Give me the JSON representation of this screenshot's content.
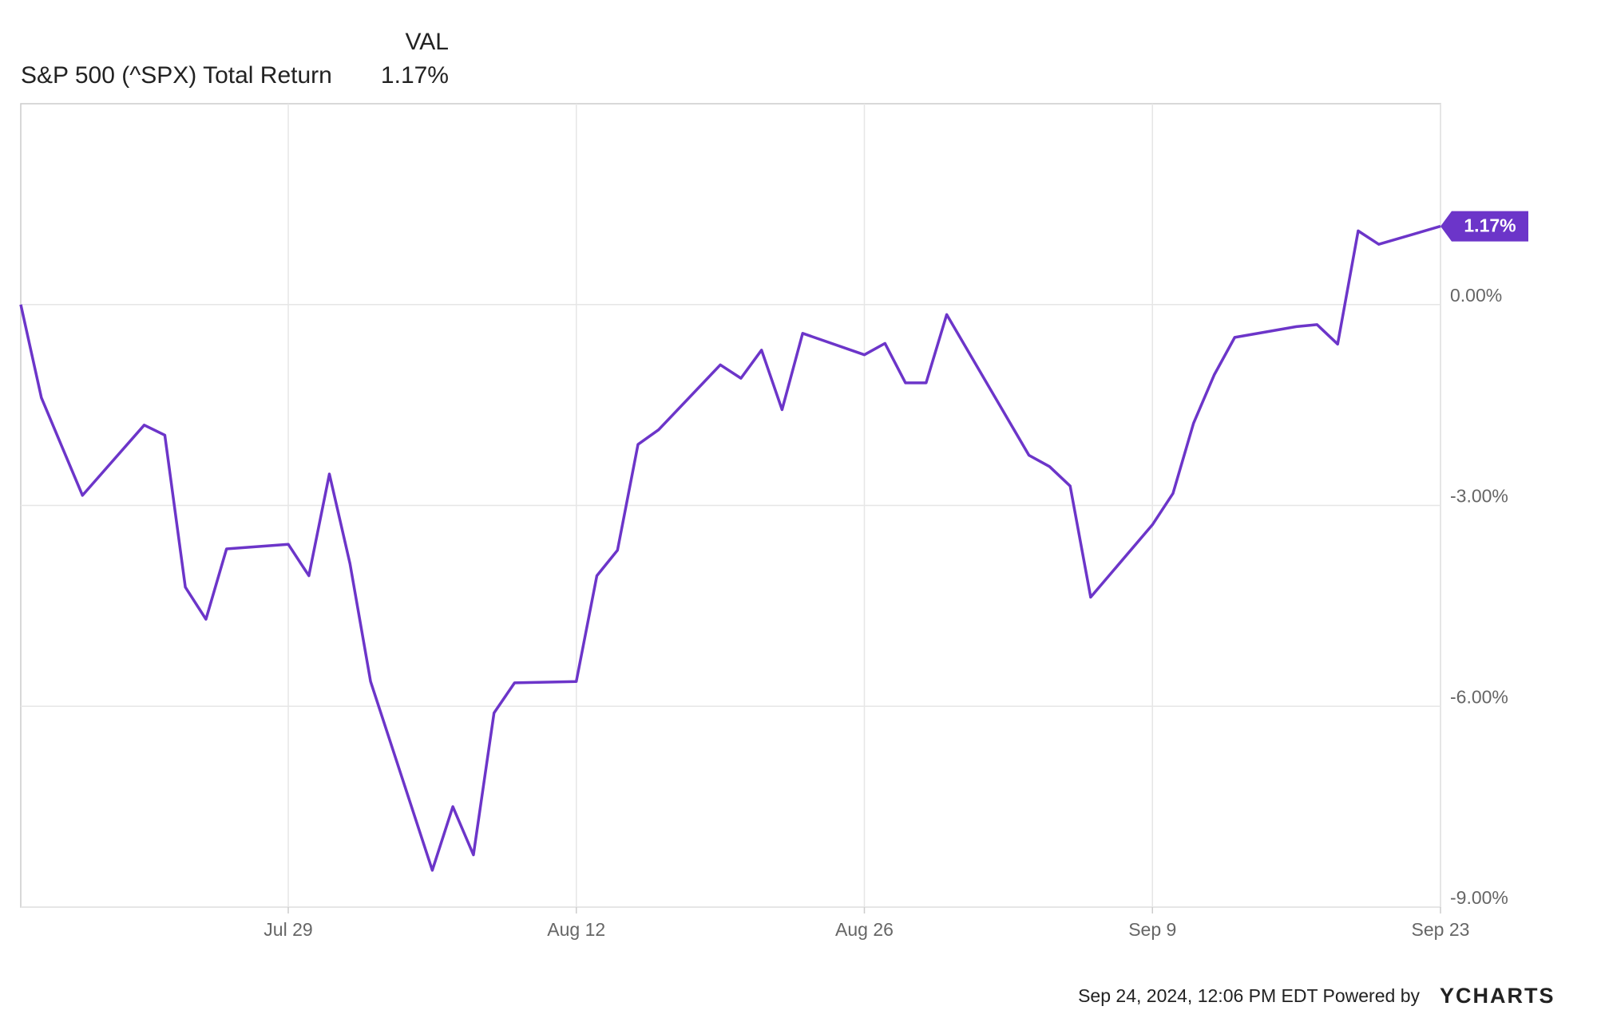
{
  "chart_data": {
    "type": "line",
    "legend": {
      "header": "VAL",
      "value": "1.17%"
    },
    "x": [
      "Jul 16",
      "Jul 17",
      "Jul 18",
      "Jul 19",
      "Jul 22",
      "Jul 23",
      "Jul 24",
      "Jul 25",
      "Jul 26",
      "Jul 29",
      "Jul 30",
      "Jul 31",
      "Aug 1",
      "Aug 2",
      "Aug 5",
      "Aug 6",
      "Aug 7",
      "Aug 8",
      "Aug 9",
      "Aug 12",
      "Aug 13",
      "Aug 14",
      "Aug 15",
      "Aug 16",
      "Aug 19",
      "Aug 20",
      "Aug 21",
      "Aug 22",
      "Aug 23",
      "Aug 26",
      "Aug 27",
      "Aug 28",
      "Aug 29",
      "Aug 30",
      "Sep 3",
      "Sep 4",
      "Sep 5",
      "Sep 6",
      "Sep 9",
      "Sep 10",
      "Sep 11",
      "Sep 12",
      "Sep 13",
      "Sep 16",
      "Sep 17",
      "Sep 18",
      "Sep 19",
      "Sep 20",
      "Sep 23"
    ],
    "series": [
      {
        "name": "S&P 500 (^SPX) Total Return",
        "color": "#6c35c9",
        "values": [
          0,
          -1.39,
          -2.12,
          -2.85,
          -1.8,
          -1.95,
          -4.22,
          -4.7,
          -3.65,
          -3.58,
          -4.05,
          -2.53,
          -3.87,
          -5.63,
          -8.45,
          -7.5,
          -8.22,
          -6.1,
          -5.65,
          -5.63,
          -4.05,
          -3.67,
          -2.09,
          -1.87,
          -0.9,
          -1.1,
          -0.68,
          -1.57,
          -0.43,
          -0.75,
          -0.58,
          -1.17,
          -1.17,
          -0.15,
          -2.25,
          -2.42,
          -2.71,
          -4.37,
          -3.29,
          -2.82,
          -1.77,
          -1.05,
          -0.49,
          -0.33,
          -0.3,
          -0.59,
          1.1,
          0.9,
          1.17
        ]
      }
    ],
    "xlim": [
      "Jul 16",
      "Sep 23"
    ],
    "xticks": [
      "Jul 29",
      "Aug 12",
      "Aug 26",
      "Sep 9",
      "Sep 23"
    ],
    "ylim": [
      -9,
      3
    ],
    "yticks": [
      {
        "value": 0,
        "label": "0.00%"
      },
      {
        "value": -3,
        "label": "-3.00%"
      },
      {
        "value": -6,
        "label": "-6.00%"
      },
      {
        "value": -9,
        "label": "-9.00%"
      }
    ],
    "grid": true,
    "footer": "Sep 24, 2024, 12:06 PM EDT Powered by",
    "brand": "YCHARTS"
  }
}
